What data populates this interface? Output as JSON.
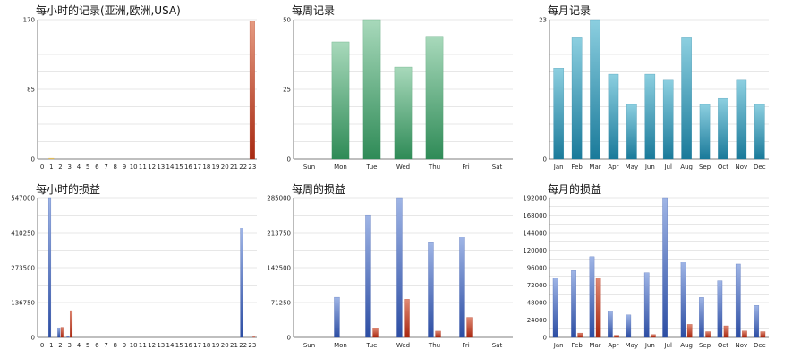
{
  "chart_data": [
    {
      "id": "hourly-records",
      "type": "bar",
      "title": "每小时的记录(亚洲,欧洲,USA)",
      "categories": [
        "0",
        "1",
        "2",
        "3",
        "4",
        "5",
        "6",
        "7",
        "8",
        "9",
        "10",
        "11",
        "12",
        "13",
        "14",
        "15",
        "16",
        "17",
        "18",
        "19",
        "20",
        "21",
        "22",
        "23"
      ],
      "y_ticks": [
        "0",
        "85",
        "170"
      ],
      "ylim": [
        0,
        170
      ],
      "grid": true,
      "series": [
        {
          "values": [
            0,
            1,
            0,
            0,
            0,
            0,
            0,
            0,
            0,
            0,
            0,
            0,
            0,
            0,
            0,
            0,
            0,
            0,
            0,
            0,
            0,
            0,
            0,
            168
          ],
          "colors": [
            "#e59a80",
            "#f2d27a",
            "#e59a80",
            "#e59a80",
            "#e59a80",
            "#e59a80",
            "#e59a80",
            "#e59a80",
            "#e59a80",
            "#e59a80",
            "#e59a80",
            "#e59a80",
            "#e59a80",
            "#e59a80",
            "#e59a80",
            "#e59a80",
            "#e59a80",
            "#e59a80",
            "#e59a80",
            "#e59a80",
            "#e59a80",
            "#e59a80",
            "#e59a80",
            "#e59a80"
          ],
          "colors_bottom": [
            "#a82a12",
            "#d4a93a",
            "#a82a12",
            "#a82a12",
            "#a82a12",
            "#a82a12",
            "#a82a12",
            "#a82a12",
            "#a82a12",
            "#a82a12",
            "#a82a12",
            "#a82a12",
            "#a82a12",
            "#a82a12",
            "#a82a12",
            "#a82a12",
            "#a82a12",
            "#a82a12",
            "#a82a12",
            "#a82a12",
            "#a82a12",
            "#a82a12",
            "#a82a12",
            "#a82a12"
          ]
        }
      ]
    },
    {
      "id": "weekly-records",
      "type": "bar",
      "title": "每周记录",
      "categories": [
        "Sun",
        "Mon",
        "Tue",
        "Wed",
        "Thu",
        "Fri",
        "Sat"
      ],
      "y_ticks": [
        "0",
        "25",
        "50"
      ],
      "ylim": [
        0,
        50
      ],
      "grid": true,
      "series": [
        {
          "values": [
            0,
            42,
            50,
            33,
            44,
            0,
            0
          ],
          "color_top": "#a8d9bb",
          "color_bottom": "#2f8b57"
        }
      ]
    },
    {
      "id": "monthly-records",
      "type": "bar",
      "title": "每月记录",
      "categories": [
        "Jan",
        "Feb",
        "Mar",
        "Apr",
        "May",
        "Jun",
        "Jul",
        "Aug",
        "Sep",
        "Oct",
        "Nov",
        "Dec"
      ],
      "y_ticks": [
        "0",
        "23"
      ],
      "ylim": [
        0,
        23
      ],
      "grid": true,
      "series": [
        {
          "values": [
            15,
            20,
            23,
            14,
            9,
            14,
            13,
            20,
            9,
            10,
            13,
            9
          ],
          "color_top": "#8ccfe0",
          "color_bottom": "#1a7a9a"
        }
      ]
    },
    {
      "id": "hourly-pnl",
      "type": "bar",
      "title": "每小时的损益",
      "categories": [
        "0",
        "1",
        "2",
        "3",
        "4",
        "5",
        "6",
        "7",
        "8",
        "9",
        "10",
        "11",
        "12",
        "13",
        "14",
        "15",
        "16",
        "17",
        "18",
        "19",
        "20",
        "21",
        "22",
        "23"
      ],
      "y_ticks": [
        "0",
        "136750",
        "273500",
        "410250",
        "547000"
      ],
      "ylim": [
        0,
        547000
      ],
      "grid": true,
      "series": [
        {
          "values": [
            0,
            547000,
            38000,
            3000,
            0,
            0,
            0,
            0,
            0,
            0,
            0,
            0,
            0,
            0,
            0,
            0,
            0,
            0,
            0,
            0,
            0,
            0,
            430000,
            0
          ],
          "color_top": "#9fb5e6",
          "color_bottom": "#2c4da3"
        },
        {
          "values": [
            0,
            0,
            40000,
            105000,
            0,
            0,
            0,
            0,
            0,
            0,
            0,
            0,
            0,
            0,
            0,
            0,
            0,
            0,
            0,
            0,
            0,
            0,
            0,
            2000
          ],
          "color_top": "#e08a74",
          "color_bottom": "#a8260f"
        }
      ]
    },
    {
      "id": "weekly-pnl",
      "type": "bar",
      "title": "每周的损益",
      "categories": [
        "Sun",
        "Mon",
        "Tue",
        "Wed",
        "Thu",
        "Fri",
        "Sat"
      ],
      "y_ticks": [
        "0",
        "71250",
        "142500",
        "213750",
        "285000"
      ],
      "ylim": [
        0,
        285000
      ],
      "grid": true,
      "series": [
        {
          "values": [
            0,
            82000,
            250000,
            285000,
            195000,
            205000,
            0
          ],
          "color_top": "#9fb5e6",
          "color_bottom": "#2c4da3"
        },
        {
          "values": [
            0,
            0,
            19000,
            78000,
            13000,
            41000,
            0
          ],
          "color_top": "#e08a74",
          "color_bottom": "#a8260f"
        }
      ]
    },
    {
      "id": "monthly-pnl",
      "type": "bar",
      "title": "每月的损益",
      "categories": [
        "Jan",
        "Feb",
        "Mar",
        "Apr",
        "May",
        "Jun",
        "Jul",
        "Aug",
        "Sep",
        "Oct",
        "Nov",
        "Dec"
      ],
      "y_ticks": [
        "0",
        "24000",
        "48000",
        "72000",
        "96000",
        "120000",
        "144000",
        "168000",
        "192000"
      ],
      "ylim": [
        0,
        192000
      ],
      "grid": true,
      "series": [
        {
          "values": [
            82000,
            92000,
            111000,
            36000,
            31000,
            89000,
            192000,
            104000,
            55000,
            78000,
            101000,
            44000
          ],
          "color_top": "#9fb5e6",
          "color_bottom": "#2c4da3"
        },
        {
          "values": [
            0,
            6000,
            82000,
            3000,
            0,
            4000,
            0,
            18000,
            8000,
            16000,
            9000,
            8000
          ],
          "color_top": "#e08a74",
          "color_bottom": "#a8260f"
        }
      ]
    }
  ]
}
